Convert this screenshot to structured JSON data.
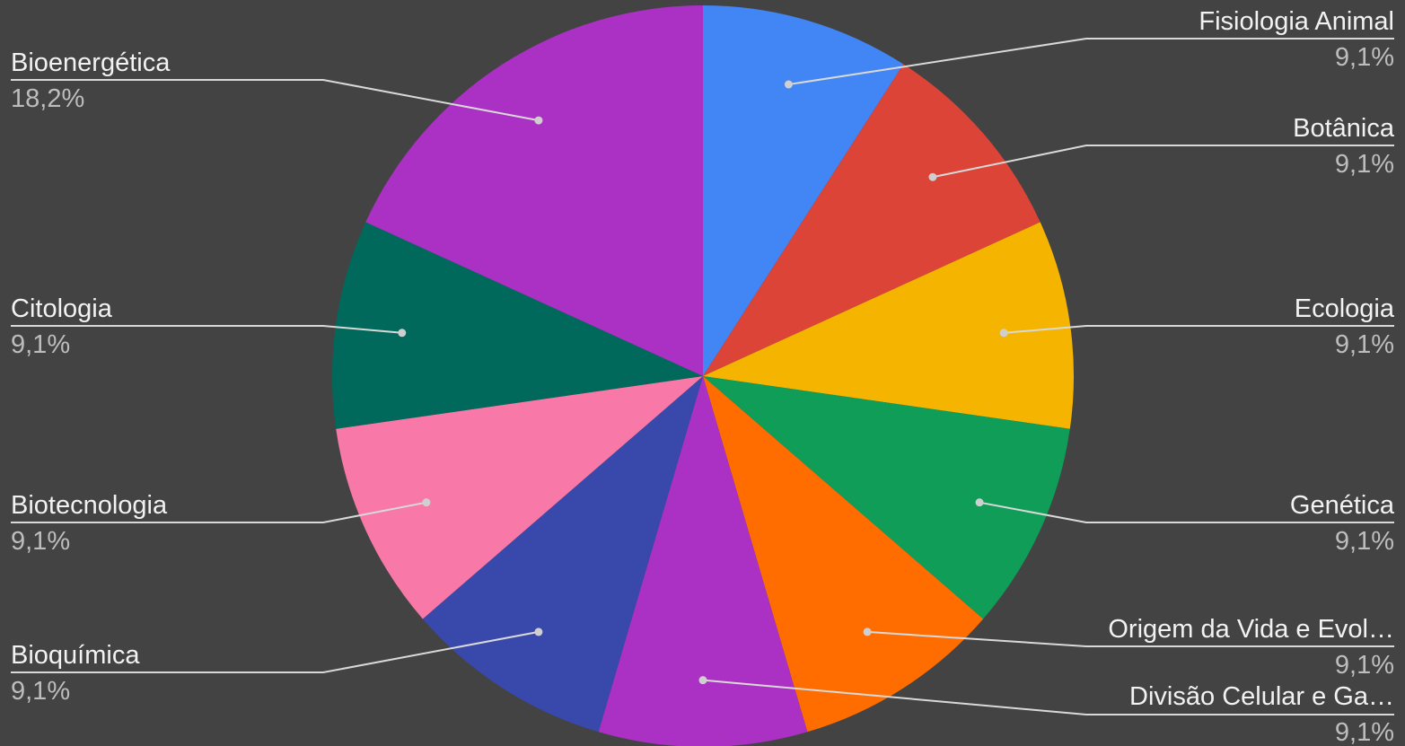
{
  "chart_data": {
    "type": "pie",
    "title": "",
    "start_angle_deg": 0,
    "direction": "clockwise",
    "legend": "labels-outside",
    "slices": [
      {
        "label": "Fisiologia Animal",
        "value": 9.1,
        "display": "9,1%",
        "color": "#4285f4",
        "side": "right"
      },
      {
        "label": "Botânica",
        "value": 9.1,
        "display": "9,1%",
        "color": "#db4437",
        "side": "right"
      },
      {
        "label": "Ecologia",
        "value": 9.1,
        "display": "9,1%",
        "color": "#f4b400",
        "side": "right"
      },
      {
        "label": "Genética",
        "value": 9.1,
        "display": "9,1%",
        "color": "#0f9d58",
        "side": "right"
      },
      {
        "label": "Origem da Vida e Evol…",
        "value": 9.1,
        "display": "9,1%",
        "color": "#ff6d00",
        "side": "right"
      },
      {
        "label": "Divisão Celular e Ga…",
        "value": 9.1,
        "display": "9,1%",
        "color": "#ab30c4",
        "side": "right"
      },
      {
        "label": "Bioquímica",
        "value": 9.1,
        "display": "9,1%",
        "color": "#3949ab",
        "side": "left"
      },
      {
        "label": "Biotecnologia",
        "value": 9.1,
        "display": "9,1%",
        "color": "#f878a8",
        "side": "left"
      },
      {
        "label": "Citologia",
        "value": 9.1,
        "display": "9,1%",
        "color": "#00695c",
        "side": "left"
      },
      {
        "label": "Bioenergética",
        "value": 18.2,
        "display": "18,2%",
        "color": "#ab30c4",
        "side": "left"
      }
    ]
  }
}
